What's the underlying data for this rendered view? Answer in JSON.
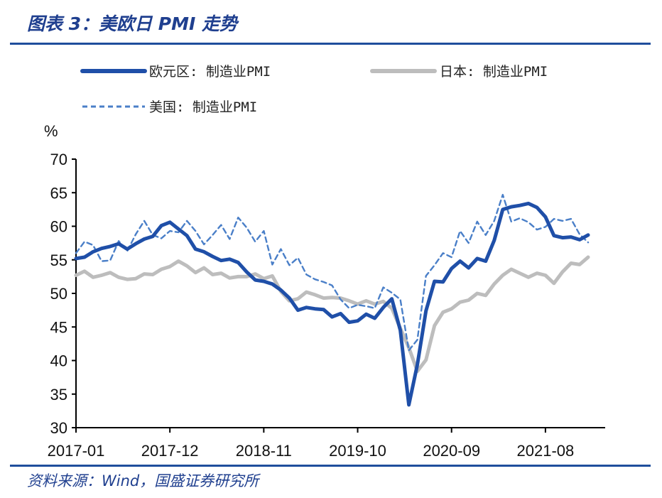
{
  "header": {
    "title": "图表 3：美欧日 PMI 走势"
  },
  "footer": {
    "source": "资料来源：Wind，国盛证券研究所"
  },
  "chart_data": {
    "type": "line",
    "title": "美欧日 PMI 走势",
    "unit": "%",
    "ylim": [
      30,
      70
    ],
    "yticks": [
      30,
      35,
      40,
      45,
      50,
      55,
      60,
      65,
      70
    ],
    "x_start": "2017-01",
    "x_end": "2022-03",
    "xtick_labels": [
      "2017-01",
      "2017-12",
      "2018-11",
      "2019-10",
      "2020-09",
      "2021-08"
    ],
    "legend": [
      "欧元区: 制造业PMI",
      "日本: 制造业PMI",
      "美国: 制造业PMI"
    ],
    "series": [
      {
        "name": "欧元区: 制造业PMI",
        "color": "#1f4fa8",
        "style": "solid-thick",
        "values": [
          55.2,
          55.4,
          56.2,
          56.7,
          57.0,
          57.4,
          56.6,
          57.4,
          58.1,
          58.5,
          60.1,
          60.6,
          59.6,
          58.6,
          56.6,
          56.2,
          55.5,
          54.9,
          55.1,
          54.6,
          53.2,
          52.0,
          51.8,
          51.4,
          50.5,
          49.3,
          47.5,
          47.9,
          47.7,
          47.6,
          46.5,
          47.0,
          45.7,
          45.9,
          46.9,
          46.3,
          47.9,
          49.2,
          44.5,
          33.4,
          39.4,
          47.4,
          51.8,
          51.7,
          53.7,
          54.8,
          53.8,
          55.2,
          54.8,
          57.9,
          62.5,
          62.9,
          63.1,
          63.4,
          62.8,
          61.4,
          58.6,
          58.3,
          58.4,
          58.0,
          58.7
        ],
        "note": "monthly 2017-01 .. 2022-01"
      },
      {
        "name": "日本: 制造业PMI",
        "color": "#bdbdbd",
        "style": "solid-thick",
        "values": [
          52.7,
          53.3,
          52.4,
          52.7,
          53.1,
          52.4,
          52.1,
          52.2,
          52.9,
          52.8,
          53.6,
          54.0,
          54.8,
          54.1,
          53.1,
          53.8,
          52.8,
          53.0,
          52.3,
          52.5,
          52.5,
          52.9,
          52.2,
          52.6,
          50.3,
          48.9,
          49.2,
          50.2,
          49.8,
          49.3,
          49.4,
          49.3,
          48.9,
          48.4,
          48.9,
          48.4,
          48.8,
          47.8,
          44.8,
          41.9,
          38.4,
          40.1,
          45.2,
          47.2,
          47.7,
          48.7,
          49.0,
          50.0,
          49.7,
          51.4,
          52.7,
          53.6,
          53.0,
          52.4,
          53.0,
          52.7,
          51.5,
          53.2,
          54.5,
          54.3,
          55.4
        ],
        "note": "monthly 2017-01 .. 2022-01"
      },
      {
        "name": "美国: 制造业PMI",
        "color": "#4a7fc8",
        "style": "dashed",
        "values": [
          56.0,
          57.7,
          57.2,
          54.8,
          54.9,
          57.8,
          56.3,
          58.8,
          60.8,
          58.7,
          58.2,
          59.3,
          59.1,
          60.8,
          59.3,
          57.3,
          58.7,
          60.2,
          58.1,
          61.3,
          59.8,
          57.7,
          59.3,
          54.3,
          56.6,
          54.2,
          55.3,
          52.8,
          52.1,
          51.7,
          51.2,
          49.1,
          47.8,
          48.3,
          48.1,
          47.8,
          50.9,
          50.1,
          49.1,
          41.5,
          43.1,
          52.6,
          54.2,
          56.0,
          55.4,
          59.3,
          57.5,
          60.7,
          58.7,
          60.8,
          64.7,
          60.7,
          61.2,
          60.6,
          59.5,
          59.9,
          61.1,
          60.8,
          61.1,
          58.8,
          57.6
        ],
        "note": "monthly 2017-01 .. 2022-01"
      }
    ]
  }
}
